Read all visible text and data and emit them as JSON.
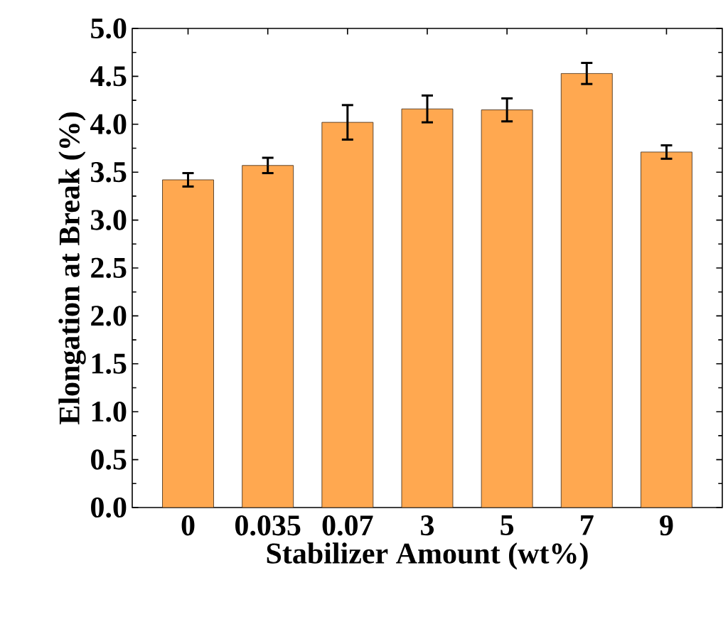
{
  "chart_data": {
    "type": "bar",
    "xlabel": "Stabilizer Amount (wt%)",
    "ylabel": "Elongation at Break (%)",
    "categories": [
      "0",
      "0.035",
      "0.07",
      "3",
      "5",
      "7",
      "9"
    ],
    "values": [
      3.42,
      3.57,
      4.02,
      4.16,
      4.15,
      4.53,
      3.71
    ],
    "errors": [
      0.07,
      0.08,
      0.18,
      0.14,
      0.12,
      0.11,
      0.07
    ],
    "color": "#ffa850",
    "ylim": [
      0,
      5
    ],
    "yticks": [
      {
        "value": 0,
        "label": "0.0"
      },
      0.5,
      {
        "value": 1,
        "label": "1.0"
      },
      1.5,
      {
        "value": 2,
        "label": "2.0"
      },
      2.5,
      {
        "value": 3,
        "label": "3.0"
      },
      3.5,
      {
        "value": 4,
        "label": "4.0"
      },
      4.5,
      {
        "value": 5,
        "label": "5.0"
      }
    ]
  }
}
